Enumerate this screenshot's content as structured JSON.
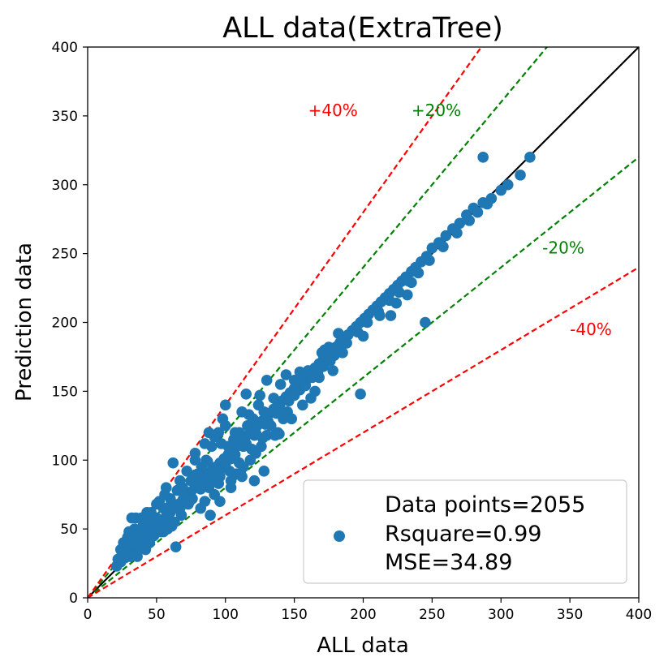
{
  "chart_data": {
    "type": "scatter",
    "title": "ALL data(ExtraTree)",
    "xlabel": "ALL data",
    "ylabel": "Prediction data",
    "xlim": [
      0,
      400
    ],
    "ylim": [
      0,
      400
    ],
    "xticks": [
      0,
      50,
      100,
      150,
      200,
      250,
      300,
      350,
      400
    ],
    "yticks": [
      0,
      50,
      100,
      150,
      200,
      250,
      300,
      350,
      400
    ],
    "grid": false,
    "point_color": "#1f77b4",
    "reference_lines": [
      {
        "label": "",
        "slope": 1.0,
        "color": "#000000",
        "style": "solid"
      },
      {
        "label": "+20%",
        "slope": 1.2,
        "color": "#008000",
        "style": "dashed"
      },
      {
        "label": "-20%",
        "slope": 0.8,
        "color": "#008000",
        "style": "dashed"
      },
      {
        "label": "+40%",
        "slope": 1.4,
        "color": "#ff0000",
        "style": "dashed"
      },
      {
        "label": "-40%",
        "slope": 0.6,
        "color": "#ff0000",
        "style": "dashed"
      }
    ],
    "line_labels": [
      {
        "text": "+40%",
        "color": "#ff0000",
        "x": 160,
        "y": 350
      },
      {
        "text": "+20%",
        "color": "#008000",
        "x": 235,
        "y": 350
      },
      {
        "text": "-20%",
        "color": "#008000",
        "x": 330,
        "y": 250
      },
      {
        "text": "-40%",
        "color": "#ff0000",
        "x": 350,
        "y": 191
      }
    ],
    "legend": {
      "placement": "lower right",
      "lines": [
        "Data points=2055",
        "Rsquare=0.99",
        "MSE=34.89"
      ]
    },
    "points": [
      [
        287,
        320
      ],
      [
        321,
        320
      ],
      [
        314,
        307
      ],
      [
        305,
        300
      ],
      [
        300,
        296
      ],
      [
        293,
        290
      ],
      [
        287,
        287
      ],
      [
        280,
        283
      ],
      [
        275,
        278
      ],
      [
        270,
        272
      ],
      [
        265,
        268
      ],
      [
        260,
        263
      ],
      [
        255,
        258
      ],
      [
        250,
        254
      ],
      [
        246,
        248
      ],
      [
        242,
        244
      ],
      [
        238,
        240
      ],
      [
        235,
        237
      ],
      [
        231,
        233
      ],
      [
        228,
        230
      ],
      [
        225,
        227
      ],
      [
        222,
        224
      ],
      [
        219,
        221
      ],
      [
        216,
        218
      ],
      [
        213,
        215
      ],
      [
        210,
        212
      ],
      [
        207,
        209
      ],
      [
        204,
        206
      ],
      [
        201,
        203
      ],
      [
        198,
        200
      ],
      [
        195,
        197
      ],
      [
        192,
        194
      ],
      [
        189,
        191
      ],
      [
        186,
        188
      ],
      [
        183,
        185
      ],
      [
        180,
        182
      ],
      [
        177,
        179
      ],
      [
        174,
        176
      ],
      [
        171,
        173
      ],
      [
        168,
        170
      ],
      [
        165,
        167
      ],
      [
        162,
        164
      ],
      [
        159,
        161
      ],
      [
        156,
        158
      ],
      [
        153,
        155
      ],
      [
        150,
        152
      ],
      [
        147,
        149
      ],
      [
        144,
        146
      ],
      [
        141,
        143
      ],
      [
        138,
        140
      ],
      [
        135,
        137
      ],
      [
        132,
        134
      ],
      [
        129,
        131
      ],
      [
        126,
        128
      ],
      [
        123,
        125
      ],
      [
        120,
        122
      ],
      [
        117,
        119
      ],
      [
        114,
        116
      ],
      [
        111,
        113
      ],
      [
        108,
        110
      ],
      [
        105,
        107
      ],
      [
        102,
        104
      ],
      [
        99,
        101
      ],
      [
        96,
        98
      ],
      [
        93,
        95
      ],
      [
        90,
        92
      ],
      [
        87,
        89
      ],
      [
        84,
        86
      ],
      [
        81,
        83
      ],
      [
        78,
        80
      ],
      [
        75,
        77
      ],
      [
        72,
        74
      ],
      [
        69,
        71
      ],
      [
        66,
        68
      ],
      [
        63,
        65
      ],
      [
        60,
        62
      ],
      [
        57,
        59
      ],
      [
        54,
        56
      ],
      [
        51,
        53
      ],
      [
        48,
        50
      ],
      [
        45,
        47
      ],
      [
        42,
        44
      ],
      [
        39,
        41
      ],
      [
        36,
        38
      ],
      [
        33,
        35
      ],
      [
        30,
        32
      ],
      [
        27,
        29
      ],
      [
        24,
        26
      ],
      [
        21,
        23
      ],
      [
        235,
        229
      ],
      [
        224,
        214
      ],
      [
        212,
        205
      ],
      [
        200,
        190
      ],
      [
        185,
        178
      ],
      [
        182,
        192
      ],
      [
        176,
        172
      ],
      [
        172,
        180
      ],
      [
        168,
        160
      ],
      [
        165,
        150
      ],
      [
        160,
        165
      ],
      [
        156,
        140
      ],
      [
        154,
        164
      ],
      [
        150,
        158
      ],
      [
        148,
        147
      ],
      [
        145,
        135
      ],
      [
        142,
        130
      ],
      [
        140,
        155
      ],
      [
        138,
        120
      ],
      [
        135,
        145
      ],
      [
        133,
        125
      ],
      [
        130,
        118
      ],
      [
        128,
        135
      ],
      [
        126,
        110
      ],
      [
        124,
        140
      ],
      [
        122,
        105
      ],
      [
        120,
        130
      ],
      [
        118,
        100
      ],
      [
        116,
        125
      ],
      [
        115,
        148
      ],
      [
        113,
        95
      ],
      [
        110,
        120
      ],
      [
        108,
        90
      ],
      [
        106,
        115
      ],
      [
        104,
        85
      ],
      [
        102,
        110
      ],
      [
        100,
        140
      ],
      [
        98,
        130
      ],
      [
        96,
        88
      ],
      [
        95,
        120
      ],
      [
        93,
        85
      ],
      [
        92,
        75
      ],
      [
        90,
        110
      ],
      [
        88,
        80
      ],
      [
        86,
        100
      ],
      [
        85,
        70
      ],
      [
        83,
        95
      ],
      [
        82,
        65
      ],
      [
        80,
        90
      ],
      [
        78,
        105
      ],
      [
        76,
        72
      ],
      [
        75,
        85
      ],
      [
        73,
        68
      ],
      [
        72,
        92
      ],
      [
        70,
        75
      ],
      [
        68,
        60
      ],
      [
        67,
        85
      ],
      [
        65,
        78
      ],
      [
        63,
        55
      ],
      [
        62,
        98
      ],
      [
        60,
        72
      ],
      [
        58,
        50
      ],
      [
        57,
        80
      ],
      [
        55,
        65
      ],
      [
        53,
        48
      ],
      [
        52,
        70
      ],
      [
        50,
        58
      ],
      [
        48,
        45
      ],
      [
        46,
        62
      ],
      [
        45,
        40
      ],
      [
        44,
        55
      ],
      [
        42,
        35
      ],
      [
        40,
        52
      ],
      [
        38,
        46
      ],
      [
        36,
        30
      ],
      [
        35,
        58
      ],
      [
        33,
        42
      ],
      [
        32,
        58
      ],
      [
        30,
        48
      ],
      [
        28,
        38
      ],
      [
        26,
        40
      ],
      [
        25,
        32
      ],
      [
        24,
        35
      ],
      [
        22,
        28
      ],
      [
        245,
        200
      ],
      [
        232,
        220
      ],
      [
        220,
        205
      ],
      [
        198,
        148
      ],
      [
        178,
        165
      ],
      [
        162,
        145
      ],
      [
        148,
        130
      ],
      [
        139,
        119
      ],
      [
        136,
        118
      ],
      [
        128,
        92
      ],
      [
        121,
        85
      ],
      [
        112,
        88
      ],
      [
        104,
        80
      ],
      [
        96,
        70
      ],
      [
        89,
        60
      ],
      [
        80,
        90
      ],
      [
        74,
        70
      ],
      [
        69,
        80
      ],
      [
        64,
        37
      ],
      [
        61,
        52
      ],
      [
        56,
        75
      ],
      [
        55,
        48
      ],
      [
        50,
        68
      ],
      [
        47,
        55
      ],
      [
        43,
        62
      ],
      [
        41,
        54
      ],
      [
        37,
        45
      ],
      [
        34,
        50
      ],
      [
        31,
        38
      ],
      [
        29,
        44
      ],
      [
        27,
        33
      ],
      [
        39,
        58
      ],
      [
        290,
        286
      ],
      [
        283,
        280
      ],
      [
        277,
        274
      ],
      [
        268,
        265
      ],
      [
        258,
        255
      ],
      [
        248,
        245
      ],
      [
        240,
        236
      ],
      [
        233,
        230
      ],
      [
        226,
        222
      ],
      [
        219,
        216
      ],
      [
        211,
        208
      ],
      [
        203,
        200
      ],
      [
        196,
        193
      ],
      [
        188,
        185
      ],
      [
        179,
        176
      ],
      [
        171,
        168
      ],
      [
        163,
        160
      ],
      [
        154,
        151
      ],
      [
        146,
        143
      ],
      [
        137,
        134
      ],
      [
        129,
        126
      ],
      [
        121,
        118
      ],
      [
        113,
        110
      ],
      [
        104,
        101
      ],
      [
        97,
        94
      ],
      [
        89,
        86
      ],
      [
        82,
        79
      ],
      [
        74,
        72
      ],
      [
        67,
        65
      ],
      [
        59,
        57
      ],
      [
        52,
        50
      ],
      [
        45,
        43
      ],
      [
        38,
        37
      ],
      [
        31,
        30
      ],
      [
        95,
        83
      ],
      [
        103,
        92
      ],
      [
        110,
        98
      ],
      [
        119,
        108
      ],
      [
        127,
        116
      ],
      [
        117,
        133
      ],
      [
        107,
        120
      ],
      [
        97,
        112
      ],
      [
        87,
        99
      ],
      [
        77,
        88
      ],
      [
        68,
        78
      ],
      [
        59,
        66
      ],
      [
        92,
        117
      ],
      [
        85,
        112
      ],
      [
        78,
        100
      ],
      [
        88,
        120
      ],
      [
        100,
        125
      ],
      [
        112,
        135
      ],
      [
        125,
        147
      ],
      [
        130,
        158
      ],
      [
        144,
        162
      ],
      [
        158,
        155
      ],
      [
        170,
        178
      ],
      [
        175,
        182
      ],
      [
        100,
        97
      ],
      [
        107,
        104
      ],
      [
        115,
        112
      ],
      [
        122,
        120
      ],
      [
        131,
        128
      ],
      [
        140,
        137
      ],
      [
        150,
        147
      ],
      [
        158,
        154
      ],
      [
        167,
        163
      ],
      [
        176,
        172
      ]
    ]
  }
}
